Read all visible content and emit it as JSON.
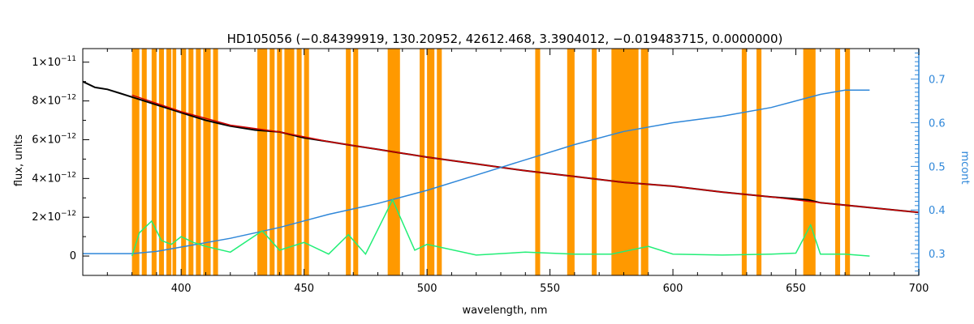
{
  "chart_data": {
    "type": "line",
    "title": "HD105056   (−0.84399919, 130.20952, 42612.468, 3.3904012, −0.019483715, 0.0000000)",
    "xlabel": "wavelength, nm",
    "ylabel": "flux, units",
    "ylabel_right": "mcont",
    "xlim": [
      360,
      700
    ],
    "ylim": [
      -1e-12,
      1.07e-11
    ],
    "ylim_right": [
      0.25,
      0.77
    ],
    "x_ticks": [
      400,
      450,
      500,
      550,
      600,
      650,
      700
    ],
    "x_tick_labels": [
      "400",
      "450",
      "500",
      "550",
      "600",
      "650",
      "700"
    ],
    "y_ticks": [
      0,
      2e-12,
      4e-12,
      6e-12,
      8e-12,
      1e-11
    ],
    "y_tick_labels": [
      {
        "mantissa": "0",
        "exp": ""
      },
      {
        "mantissa": "2×10",
        "exp": "−12"
      },
      {
        "mantissa": "4×10",
        "exp": "−12"
      },
      {
        "mantissa": "6×10",
        "exp": "−12"
      },
      {
        "mantissa": "8×10",
        "exp": "−12"
      },
      {
        "mantissa": "1×10",
        "exp": "−11"
      }
    ],
    "y_ticks_right": [
      0.3,
      0.4,
      0.5,
      0.6,
      0.7
    ],
    "y_tick_labels_right": [
      "0.3",
      "0.4",
      "0.5",
      "0.6",
      "0.7"
    ],
    "masked_regions": [
      [
        380,
        383
      ],
      [
        384,
        386
      ],
      [
        388,
        390
      ],
      [
        391,
        393
      ],
      [
        394,
        396
      ],
      [
        396.5,
        398
      ],
      [
        400,
        402
      ],
      [
        403,
        405
      ],
      [
        406,
        408
      ],
      [
        409,
        412
      ],
      [
        413,
        415
      ],
      [
        431,
        435
      ],
      [
        436,
        438
      ],
      [
        439,
        441
      ],
      [
        442,
        446
      ],
      [
        447,
        449
      ],
      [
        450,
        452
      ],
      [
        467,
        469
      ],
      [
        470,
        472
      ],
      [
        484,
        489
      ],
      [
        497,
        499
      ],
      [
        500,
        503
      ],
      [
        504,
        506
      ],
      [
        544,
        546
      ],
      [
        557,
        560
      ],
      [
        567,
        569
      ],
      [
        575,
        586
      ],
      [
        587,
        590
      ],
      [
        628,
        630
      ],
      [
        634,
        636
      ],
      [
        653,
        658
      ],
      [
        666,
        668
      ],
      [
        670,
        672
      ]
    ],
    "series": [
      {
        "color": "#000000",
        "x": [
          360,
          365,
          370,
          375,
          380,
          385,
          390,
          395,
          400,
          405,
          410,
          415,
          420,
          430,
          440,
          450,
          460,
          470,
          480,
          490,
          500,
          520,
          540,
          560,
          580,
          600,
          620,
          640,
          650,
          655,
          660,
          680,
          700
        ],
        "y": [
          9e-12,
          8.7e-12,
          8.6e-12,
          8.4e-12,
          8.2e-12,
          8e-12,
          7.8e-12,
          7.6e-12,
          7.4e-12,
          7.2e-12,
          7e-12,
          6.85e-12,
          6.7e-12,
          6.5e-12,
          6.4e-12,
          6.1e-12,
          5.9e-12,
          5.7e-12,
          5.5e-12,
          5.3e-12,
          5.1e-12,
          4.75e-12,
          4.4e-12,
          4.1e-12,
          3.8e-12,
          3.6e-12,
          3.3e-12,
          3.05e-12,
          2.95e-12,
          2.9e-12,
          2.75e-12,
          2.5e-12,
          2.25e-12
        ]
      },
      {
        "color": "#cc0000",
        "x": [
          380,
          400,
          420,
          440,
          460,
          480,
          500,
          520,
          540,
          560,
          580,
          600,
          620,
          640,
          660,
          680,
          700
        ],
        "y": [
          8.3e-12,
          7.45e-12,
          6.75e-12,
          6.4e-12,
          5.9e-12,
          5.5e-12,
          5.1e-12,
          4.75e-12,
          4.4e-12,
          4.1e-12,
          3.8e-12,
          3.6e-12,
          3.3e-12,
          3.05e-12,
          2.75e-12,
          2.5e-12,
          2.25e-12
        ]
      },
      {
        "color": "#2f87d9",
        "axis": "right",
        "x": [
          360,
          380,
          390,
          400,
          420,
          440,
          460,
          480,
          500,
          520,
          540,
          560,
          580,
          600,
          620,
          640,
          660,
          670,
          680
        ],
        "y": [
          0.3,
          0.3,
          0.305,
          0.315,
          0.335,
          0.36,
          0.39,
          0.415,
          0.445,
          0.48,
          0.515,
          0.55,
          0.58,
          0.6,
          0.615,
          0.635,
          0.665,
          0.675,
          0.675
        ]
      },
      {
        "color": "#22ee77",
        "x": [
          380,
          383,
          388,
          392,
          396,
          400,
          405,
          410,
          420,
          433,
          440,
          450,
          460,
          468,
          475,
          486,
          495,
          500,
          520,
          540,
          560,
          575,
          590,
          600,
          620,
          640,
          650,
          656,
          660,
          670,
          680
        ],
        "y": [
          0,
          1.2e-12,
          1.8e-12,
          8e-13,
          6e-13,
          1e-12,
          7e-13,
          5e-13,
          2e-13,
          1.3e-12,
          3e-13,
          7e-13,
          1e-13,
          1.1e-12,
          1e-13,
          2.9e-12,
          3e-13,
          6e-13,
          5e-14,
          2e-13,
          1e-13,
          1e-13,
          5e-13,
          1e-13,
          5e-14,
          1e-13,
          1.5e-13,
          1.6e-12,
          1e-13,
          1e-13,
          0.0
        ]
      }
    ]
  }
}
